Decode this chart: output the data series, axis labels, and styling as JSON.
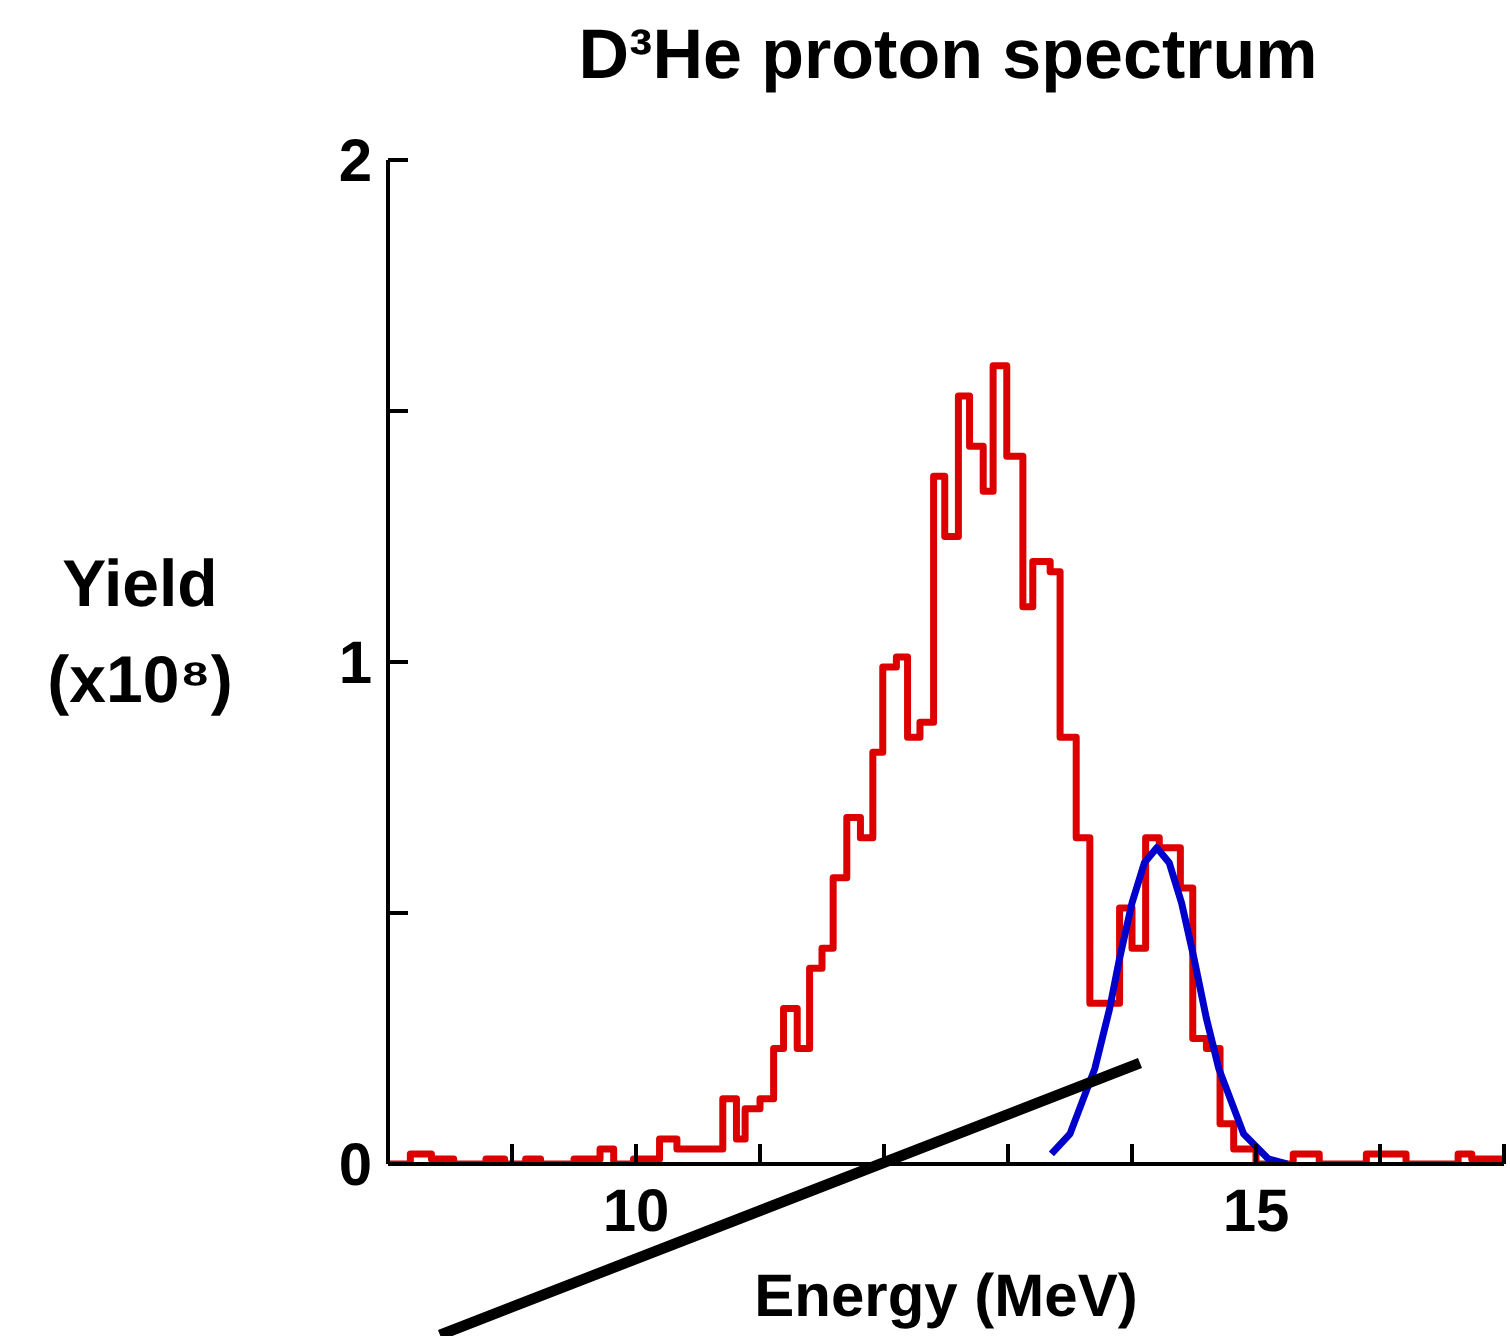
{
  "chart_data": {
    "type": "step",
    "title": "D³He proton spectrum",
    "xlabel": "Energy (MeV)",
    "ylabel": "Yield (x10⁸)",
    "xlim": [
      8,
      17
    ],
    "xticks": [
      {
        "value": 8,
        "label": null
      },
      {
        "value": 9,
        "label": null
      },
      10,
      {
        "value": 11,
        "label": null
      },
      {
        "value": 12,
        "label": null
      },
      {
        "value": 13,
        "label": null
      },
      {
        "value": 14,
        "label": null
      },
      15,
      {
        "value": 16,
        "label": null
      },
      {
        "value": 17,
        "label": null
      }
    ],
    "ylim": [
      0,
      2
    ],
    "yticks": [
      0,
      {
        "value": 0.5,
        "label": null
      },
      1,
      {
        "value": 1.5,
        "label": null
      },
      2
    ],
    "grid": false,
    "marker": "none",
    "line_style": "solid",
    "series": [
      {
        "type": "step",
        "color": "#dd0000",
        "x": [
          8,
          8.18,
          8.35,
          8.53,
          8.79,
          8.94,
          9.11,
          9.23,
          9.5,
          9.71,
          9.82,
          9.98,
          10.19,
          10.33,
          10.44,
          10.7,
          10.81,
          10.88,
          11,
          11.11,
          11.19,
          11.3,
          11.4,
          11.5,
          11.59,
          11.7,
          11.81,
          11.91,
          11.99,
          12.1,
          12.19,
          12.29,
          12.4,
          12.49,
          12.6,
          12.69,
          12.8,
          12.88,
          12.99,
          13.12,
          13.2,
          13.34,
          13.42,
          13.55,
          13.66,
          13.9,
          14,
          14.11,
          14.22,
          14.39,
          14.49,
          14.6,
          14.71,
          14.82,
          15,
          15.3,
          15.51,
          15.89,
          16.21,
          16.63,
          16.74,
          17
        ],
        "values": [
          0,
          0.02,
          0.01,
          0,
          0.01,
          0,
          0.01,
          0,
          0.01,
          0.03,
          0,
          0.01,
          0.05,
          0.03,
          0.03,
          0.13,
          0.05,
          0.11,
          0.13,
          0.23,
          0.31,
          0.23,
          0.39,
          0.43,
          0.57,
          0.69,
          0.65,
          0.82,
          0.99,
          1.01,
          0.85,
          0.88,
          1.37,
          1.25,
          1.53,
          1.43,
          1.34,
          1.59,
          1.41,
          1.11,
          1.2,
          1.18,
          0.85,
          0.65,
          0.32,
          0.51,
          0.43,
          0.65,
          0.63,
          0.55,
          0.25,
          0.23,
          0.08,
          0.03,
          0,
          0.02,
          0,
          0.02,
          0,
          0.02,
          0.01,
          0.01
        ]
      },
      {
        "type": "line",
        "color": "#0000cc",
        "x": [
          13.35,
          13.5,
          13.7,
          13.82,
          13.9,
          14,
          14.1,
          14.2,
          14.3,
          14.4,
          14.5,
          14.6,
          14.7,
          14.9,
          15.1,
          15.25
        ],
        "values": [
          0.02,
          0.06,
          0.19,
          0.31,
          0.41,
          0.52,
          0.6,
          0.63,
          0.6,
          0.52,
          0.41,
          0.29,
          0.19,
          0.06,
          0.01,
          0
        ]
      }
    ]
  }
}
